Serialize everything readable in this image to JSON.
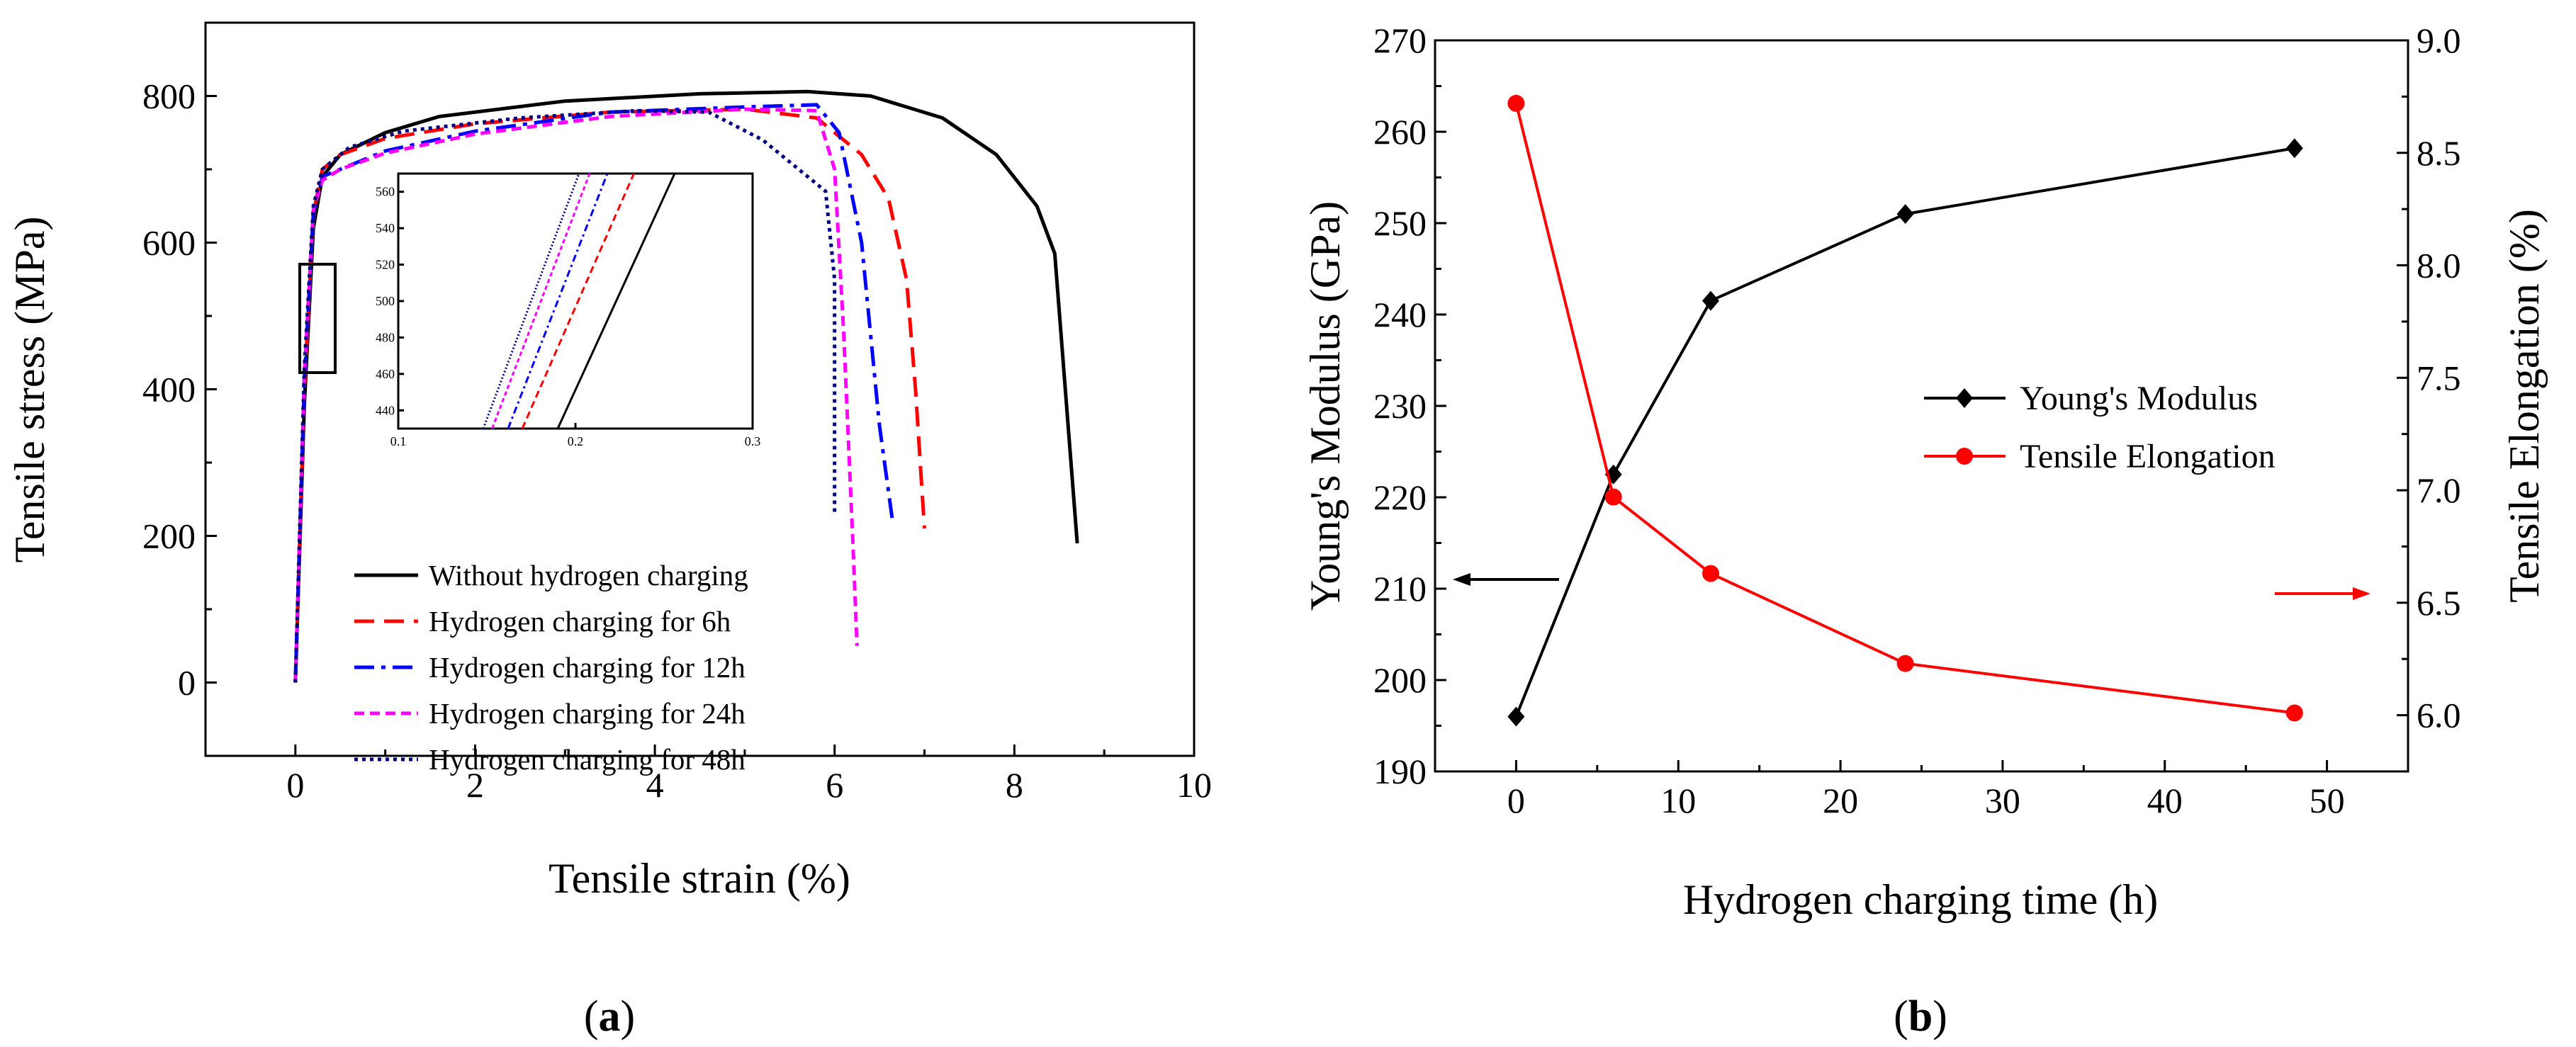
{
  "chart_data": [
    {
      "type": "line",
      "panel_label": "(a)",
      "panel_letter": "a",
      "xlabel": "Tensile strain  (%)",
      "ylabel": "Tensile stress  (MPa)",
      "xlim": [
        -1,
        10
      ],
      "ylim": [
        -100,
        900
      ],
      "xticks": [
        0,
        2,
        4,
        6,
        8,
        10
      ],
      "yticks": [
        0,
        200,
        400,
        600,
        800
      ],
      "grid": false,
      "legend_position": "lower-center",
      "series": [
        {
          "name": "Without hydrogen charging",
          "color": "#000000",
          "dash": "solid",
          "x": [
            0,
            0.1,
            0.2,
            0.3,
            0.5,
            1.0,
            1.6,
            3.0,
            4.5,
            5.7,
            6.4,
            7.2,
            7.8,
            8.25,
            8.45,
            8.7
          ],
          "y": [
            0,
            380,
            620,
            690,
            720,
            750,
            772,
            793,
            803,
            806,
            800,
            770,
            720,
            650,
            585,
            190
          ]
        },
        {
          "name": "Hydrogen charging for 6h",
          "color": "#ff0000",
          "dash": "dashed",
          "x": [
            0,
            0.1,
            0.2,
            0.3,
            0.5,
            1.0,
            2.0,
            3.5,
            5.0,
            5.8,
            6.3,
            6.6,
            6.8,
            6.9,
            7.0
          ],
          "y": [
            0,
            400,
            640,
            700,
            720,
            742,
            762,
            778,
            782,
            770,
            720,
            660,
            550,
            400,
            210
          ]
        },
        {
          "name": "Hydrogen charging for 12h",
          "color": "#0000ff",
          "dash": "dashdot",
          "x": [
            0,
            0.1,
            0.2,
            0.3,
            0.5,
            1.0,
            2.0,
            3.5,
            5.0,
            5.8,
            6.05,
            6.3,
            6.5,
            6.65
          ],
          "y": [
            0,
            410,
            640,
            690,
            700,
            725,
            752,
            778,
            785,
            788,
            750,
            600,
            350,
            215
          ]
        },
        {
          "name": "Hydrogen charging for 24h",
          "color": "#ff00ff",
          "dash": "shortdash",
          "x": [
            0,
            0.1,
            0.2,
            0.3,
            0.5,
            1.0,
            2.0,
            3.5,
            5.0,
            5.8,
            6.0,
            6.1,
            6.2,
            6.25
          ],
          "y": [
            0,
            420,
            645,
            685,
            700,
            722,
            748,
            772,
            782,
            780,
            700,
            480,
            200,
            50
          ]
        },
        {
          "name": "Hydrogen charging for 48h",
          "color": "#000080",
          "dash": "dotted",
          "x": [
            0,
            0.1,
            0.2,
            0.3,
            0.6,
            1.2,
            2.5,
            3.8,
            4.6,
            5.2,
            5.7,
            5.9,
            6.0,
            6.0
          ],
          "y": [
            0,
            430,
            650,
            700,
            730,
            752,
            770,
            780,
            778,
            740,
            690,
            670,
            550,
            230
          ]
        }
      ],
      "inset": {
        "xlim": [
          0.1,
          0.3
        ],
        "ylim": [
          430,
          570
        ],
        "xticks": [
          0.1,
          0.2,
          0.3
        ],
        "yticks": [
          440,
          460,
          480,
          500,
          520,
          540,
          560
        ],
        "series": [
          {
            "x": [
              0.19,
              0.256
            ],
            "y": [
              430,
              570
            ]
          },
          {
            "x": [
              0.17,
              0.233
            ],
            "y": [
              430,
              570
            ]
          },
          {
            "x": [
              0.162,
              0.218
            ],
            "y": [
              430,
              570
            ]
          },
          {
            "x": [
              0.153,
              0.208
            ],
            "y": [
              430,
              570
            ]
          },
          {
            "x": [
              0.148,
              0.202
            ],
            "y": [
              430,
              570
            ]
          }
        ]
      }
    },
    {
      "type": "line",
      "panel_label": "(b)",
      "panel_letter": "b",
      "xlabel": "Hydrogen charging time  (h)",
      "ylabel": "Young's Modulus  (GPa)",
      "ylabel_right": "Tensile Elongation  (%)",
      "xlim": [
        -5,
        55
      ],
      "ylim": [
        190,
        270
      ],
      "ylim_right": [
        5.75,
        9.0
      ],
      "xticks": [
        0,
        10,
        20,
        30,
        40,
        50
      ],
      "yticks": [
        190,
        200,
        210,
        220,
        230,
        240,
        250,
        260,
        270
      ],
      "yticks_right": [
        "6.0",
        "6.5",
        "7.0",
        "7.5",
        "8.0",
        "8.5",
        "9.0"
      ],
      "grid": false,
      "legend_position": "center-right",
      "series": [
        {
          "name": "Young's Modulus",
          "axis": "left",
          "color": "#000000",
          "marker": "diamond",
          "x": [
            0,
            6,
            12,
            24,
            48
          ],
          "y": [
            196,
            222.5,
            241.5,
            251,
            258.2
          ]
        },
        {
          "name": "Tensile Elongation",
          "axis": "right",
          "color": "#ff0000",
          "marker": "circle",
          "x": [
            0,
            6,
            12,
            24,
            48
          ],
          "y": [
            8.72,
            6.97,
            6.63,
            6.23,
            6.01
          ]
        }
      ]
    }
  ]
}
